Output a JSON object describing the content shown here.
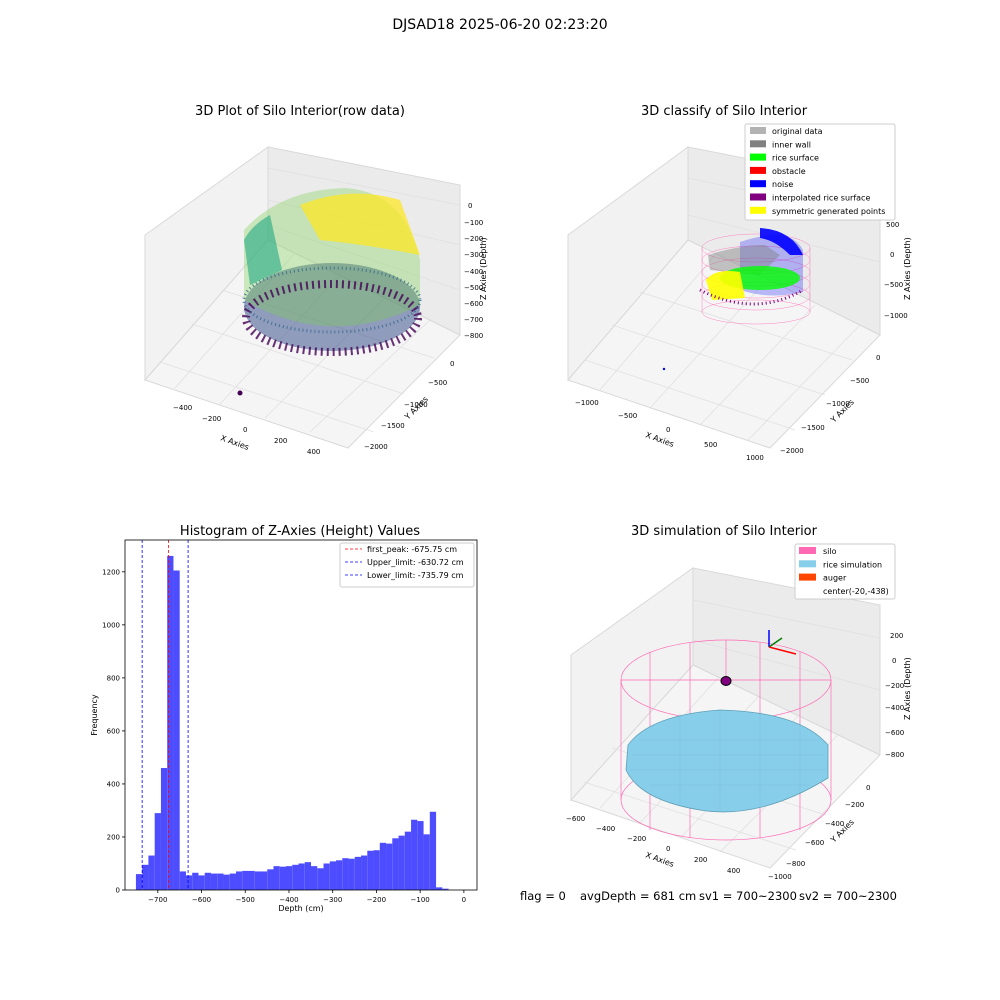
{
  "suptitle": "DJSAD18 2025-06-20 02:23:20",
  "panel_raw": {
    "title": "3D Plot of Silo Interior(row data)",
    "xlabel": "X Axies",
    "ylabel": "Y Axies",
    "zlabel": "Z Axies (Depth)",
    "xticks": [
      "-400",
      "-200",
      "0",
      "200",
      "400"
    ],
    "yticks": [
      "0",
      "-500",
      "-1000",
      "-1500",
      "-2000"
    ],
    "zticks": [
      "0",
      "-100",
      "-200",
      "-300",
      "-400",
      "-500",
      "-600",
      "-700",
      "-800"
    ]
  },
  "panel_classify": {
    "title": "3D classify of Silo Interior",
    "xlabel": "X Axies",
    "ylabel": "Y Axies",
    "zlabel": "Z Axies (Depth)",
    "xticks": [
      "-1000",
      "-500",
      "0",
      "500",
      "1000"
    ],
    "yticks": [
      "0",
      "-500",
      "-1000",
      "-1500",
      "-2000"
    ],
    "zticks": [
      "500",
      "0",
      "-500",
      "-1000"
    ],
    "legend": [
      {
        "label": "original data",
        "color": "#b3b3b3"
      },
      {
        "label": "inner wall",
        "color": "#808080"
      },
      {
        "label": "rice surface",
        "color": "#00ff00"
      },
      {
        "label": "obstacle",
        "color": "#ff0000"
      },
      {
        "label": "noise",
        "color": "#0000ff"
      },
      {
        "label": "interpolated rice surface",
        "color": "#800080"
      },
      {
        "label": "symmetric generated points",
        "color": "#ffff00"
      }
    ]
  },
  "panel_simulation": {
    "title": "3D simulation of Silo Interior",
    "xlabel": "X Axies",
    "ylabel": "Y Axies",
    "zlabel": "Z Axies (Depth)",
    "xticks": [
      "-600",
      "-400",
      "-200",
      "0",
      "200",
      "400"
    ],
    "yticks": [
      "0",
      "-200",
      "-400",
      "-600",
      "-800",
      "-1000"
    ],
    "zticks": [
      "200",
      "0",
      "-200",
      "-400",
      "-600",
      "-800"
    ],
    "legend": [
      {
        "label": "silo",
        "color": "#ff69b4"
      },
      {
        "label": "rice simulation",
        "color": "#87ceeb"
      },
      {
        "label": "auger",
        "color": "#ff4500"
      },
      {
        "label": "center(-20,-438)",
        "color": ""
      }
    ]
  },
  "footer": {
    "flag": "flag = 0",
    "avg": "avgDepth = 681 cm",
    "sv1": "sv1 = 700~2300",
    "sv2": "sv2 = 700~2300"
  },
  "colors": {
    "hist": "#4d4dff",
    "peak_line": "#ff0000",
    "limit_line": "#0000ff",
    "silo": "#ff69b4",
    "rice": "#87ceeb"
  },
  "chart_data": {
    "type": "bar",
    "title": "Histogram of Z-Axies (Height) Values",
    "xlabel": "Depth (cm)",
    "ylabel": "Frequency",
    "xlim": [
      -775,
      30
    ],
    "ylim": [
      0,
      1320
    ],
    "xticks": [
      -700,
      -600,
      -500,
      -400,
      -300,
      -200,
      -100,
      0
    ],
    "yticks": [
      0,
      200,
      400,
      600,
      800,
      1000,
      1200
    ],
    "bin_edges_start": -750,
    "bin_width": 14.3,
    "values": [
      60,
      95,
      130,
      290,
      460,
      1260,
      1205,
      70,
      55,
      65,
      55,
      65,
      62,
      62,
      58,
      62,
      70,
      72,
      72,
      70,
      70,
      78,
      90,
      88,
      90,
      95,
      100,
      105,
      90,
      82,
      100,
      108,
      112,
      120,
      118,
      125,
      130,
      148,
      150,
      178,
      175,
      195,
      205,
      220,
      265,
      260,
      210,
      295,
      10,
      5
    ],
    "lines": [
      {
        "label": "first_peak: -675.75 cm",
        "x": -675.75,
        "color": "#ff0000"
      },
      {
        "label": "Upper_limit: -630.72 cm",
        "x": -630.72,
        "color": "#0000ff"
      },
      {
        "label": "Lower_limit: -735.79 cm",
        "x": -735.79,
        "color": "#0000ff"
      }
    ]
  }
}
